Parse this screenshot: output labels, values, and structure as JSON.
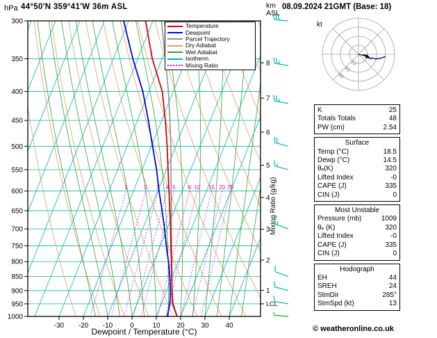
{
  "header": {
    "pressure_unit": "hPa",
    "station": "44°50'N 359°41'W 36m ASL",
    "datetime": "08.09.2024 21GMT (Base: 18)",
    "alt_unit_line1": "km",
    "alt_unit_line2": "ASL"
  },
  "axes": {
    "xlabel": "Dewpoint / Temperature (°C)",
    "mixing_ratio_label": "Mixing Ratio (g/kg)",
    "lcl_label": "LCL",
    "pressure_ticks": [
      300,
      350,
      400,
      450,
      500,
      550,
      600,
      650,
      700,
      750,
      800,
      850,
      900,
      950,
      1000
    ],
    "temp_ticks": [
      -30,
      -20,
      -10,
      0,
      10,
      20,
      30,
      40
    ],
    "km_ticks": [
      8,
      7,
      6,
      5,
      4,
      3,
      2,
      1
    ]
  },
  "legend": {
    "items": [
      {
        "label": "Temperature",
        "color": "#dd0000",
        "style": "solid"
      },
      {
        "label": "Dewpoint",
        "color": "#0000dd",
        "style": "solid"
      },
      {
        "label": "Parcel Trajectory",
        "color": "#909090",
        "style": "solid"
      },
      {
        "label": "Dry Adiabat",
        "color": "#d2a45a",
        "style": "solid"
      },
      {
        "label": "Wet Adiabat",
        "color": "#33a033",
        "style": "solid"
      },
      {
        "label": "Isotherm",
        "color": "#00b4b4",
        "style": "solid"
      },
      {
        "label": "Mixing Ratio",
        "color": "#dd00dd",
        "style": "dotted"
      }
    ]
  },
  "colors": {
    "temperature": "#dd0000",
    "dewpoint": "#0000dd",
    "parcel": "#909090",
    "dry_adiabat": "#d2a45a",
    "wet_adiabat": "#33a033",
    "isotherm": "#00b4b4",
    "isobar": "#00b4b4",
    "mixing_ratio": "#dd00dd",
    "barb": "#00b4b4",
    "surface_barb": "#00bb00",
    "hodograph_grid": "#a0a0a0",
    "hodograph_trace": "#202080"
  },
  "chart_data": {
    "type": "skewt-logp",
    "pressure_range_hpa": [
      300,
      1000
    ],
    "temp_axis_range_c": [
      -30,
      40
    ],
    "km_axis_range": [
      1,
      8
    ],
    "lcl_pressure_hpa": 950,
    "mixing_ratio_lines_gkg": [
      1,
      2,
      3,
      4,
      5,
      8,
      10,
      15,
      20,
      25
    ],
    "levels_hpa": [
      1000,
      950,
      900,
      850,
      800,
      750,
      700,
      650,
      600,
      550,
      500,
      450,
      400,
      350,
      300
    ],
    "temperature_c": [
      18.5,
      14.8,
      12.2,
      9.8,
      7.2,
      4.4,
      1.5,
      -1.8,
      -5.4,
      -9.3,
      -13.5,
      -18.5,
      -24.5,
      -34.0,
      -43.0
    ],
    "dewpoint_c": [
      14.5,
      13.5,
      11.5,
      9.0,
      6.0,
      2.5,
      -1.0,
      -5.0,
      -9.5,
      -14.0,
      -19.5,
      -25.5,
      -32.5,
      -42.0,
      -52.0
    ],
    "parcel_c": [
      18.5,
      14.3,
      12.1,
      9.9,
      7.4,
      4.7,
      1.8,
      -1.2,
      -4.5,
      -8.1,
      -12.0,
      -16.6,
      -22.0,
      -28.6,
      -36.5
    ],
    "wind_barbs": [
      {
        "pressure_hpa": 300,
        "dir_deg": 275,
        "speed_kt": 30
      },
      {
        "pressure_hpa": 360,
        "dir_deg": 280,
        "speed_kt": 25
      },
      {
        "pressure_hpa": 420,
        "dir_deg": 280,
        "speed_kt": 25
      },
      {
        "pressure_hpa": 500,
        "dir_deg": 285,
        "speed_kt": 20
      },
      {
        "pressure_hpa": 550,
        "dir_deg": 285,
        "speed_kt": 15
      },
      {
        "pressure_hpa": 700,
        "dir_deg": 290,
        "speed_kt": 15
      },
      {
        "pressure_hpa": 850,
        "dir_deg": 290,
        "speed_kt": 10
      },
      {
        "pressure_hpa": 900,
        "dir_deg": 285,
        "speed_kt": 10
      },
      {
        "pressure_hpa": 950,
        "dir_deg": 280,
        "speed_kt": 10
      },
      {
        "pressure_hpa": 1000,
        "dir_deg": 275,
        "speed_kt": 5,
        "surface": true
      }
    ]
  },
  "hodograph": {
    "unit_label": "kt",
    "ring_values_kt": [
      10,
      20,
      30,
      40
    ],
    "ring_labels": [
      10,
      20,
      30
    ],
    "trace_u_kt": [
      5.0,
      9.9,
      9.7,
      9.4,
      14.1,
      14.5,
      19.3,
      24.6,
      29.9
    ],
    "trace_v_kt": [
      -0.4,
      -1.7,
      -2.6,
      -3.4,
      -5.1,
      -3.9,
      -5.2,
      -4.3,
      -2.6
    ],
    "storm_u_kt": 12.6,
    "storm_v_kt": -3.4
  },
  "stats": {
    "indices": {
      "rows": [
        {
          "label": "K",
          "value": "25"
        },
        {
          "label": "Totals Totals",
          "value": "48"
        },
        {
          "label": "PW (cm)",
          "value": "2.54"
        }
      ]
    },
    "surface": {
      "title": "Surface",
      "rows": [
        {
          "label": "Temp (°C)",
          "value": "18.5"
        },
        {
          "label": "Dewp (°C)",
          "value": "14.5"
        },
        {
          "label": "θₑ(K)",
          "value": "320"
        },
        {
          "label": "Lifted Index",
          "value": "-0"
        },
        {
          "label": "CAPE (J)",
          "value": "335"
        },
        {
          "label": "CIN (J)",
          "value": "0"
        }
      ]
    },
    "most_unstable": {
      "title": "Most Unstable",
      "rows": [
        {
          "label": "Pressure (mb)",
          "value": "1009"
        },
        {
          "label": "θₑ (K)",
          "value": "320"
        },
        {
          "label": "Lifted Index",
          "value": "-0"
        },
        {
          "label": "CAPE (J)",
          "value": "335"
        },
        {
          "label": "CIN (J)",
          "value": "0"
        }
      ]
    },
    "hodograph": {
      "title": "Hodograph",
      "rows": [
        {
          "label": "EH",
          "value": "44"
        },
        {
          "label": "SREH",
          "value": "24"
        },
        {
          "label": "StmDir",
          "value": "285°"
        },
        {
          "label": "StmSpd (kt)",
          "value": "13"
        }
      ]
    }
  },
  "footer": {
    "copyright": "© weatheronline.co.uk"
  }
}
